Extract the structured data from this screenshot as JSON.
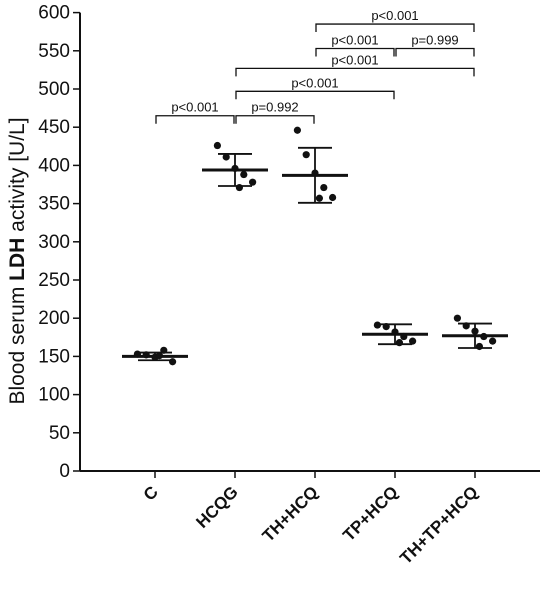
{
  "chart_data": {
    "type": "scatter",
    "ylabel_parts": [
      "Blood serum ",
      "LDH",
      " activity [U/L]"
    ],
    "ylim": [
      0,
      600
    ],
    "yticks": [
      0,
      50,
      100,
      150,
      200,
      250,
      300,
      350,
      400,
      450,
      500,
      550,
      600
    ],
    "grid": false,
    "categories": [
      "C",
      "HCQG",
      "TH+HCQ",
      "TP+HCQ",
      "TH+TP+HCQ"
    ],
    "groups": [
      {
        "name": "C",
        "mean": 150,
        "sd_low": 145,
        "sd_high": 155,
        "points": [
          153,
          152,
          149,
          158,
          143,
          151
        ]
      },
      {
        "name": "HCQG",
        "mean": 394,
        "sd_low": 373,
        "sd_high": 415,
        "points": [
          426,
          411,
          396,
          388,
          378,
          371
        ]
      },
      {
        "name": "TH+HCQ",
        "mean": 387,
        "sd_low": 351,
        "sd_high": 423,
        "points": [
          446,
          414,
          390,
          371,
          358,
          357
        ]
      },
      {
        "name": "TP+HCQ",
        "mean": 179,
        "sd_low": 166,
        "sd_high": 192,
        "points": [
          191,
          189,
          182,
          176,
          170,
          168
        ]
      },
      {
        "name": "TH+TP+HCQ",
        "mean": 177,
        "sd_low": 161,
        "sd_high": 193,
        "points": [
          200,
          190,
          183,
          176,
          170,
          163
        ]
      }
    ],
    "comparisons": [
      {
        "from": "C",
        "to": "HCQG",
        "y": 465,
        "label": "p<0.001"
      },
      {
        "from": "HCQG",
        "to": "TH+HCQ",
        "y": 465,
        "label": "p=0.992"
      },
      {
        "from": "HCQG",
        "to": "TP+HCQ",
        "y": 497,
        "label": "p<0.001"
      },
      {
        "from": "HCQG",
        "to": "TH+TP+HCQ",
        "y": 527,
        "label": "p<0.001"
      },
      {
        "from": "TH+HCQ",
        "to": "TP+HCQ",
        "y": 553,
        "label": "p<0.001"
      },
      {
        "from": "TP+HCQ",
        "to": "TH+TP+HCQ",
        "y": 553,
        "label": "p=0.999"
      },
      {
        "from": "TH+HCQ",
        "to": "TH+TP+HCQ",
        "y": 585,
        "label": "p<0.001"
      }
    ]
  }
}
